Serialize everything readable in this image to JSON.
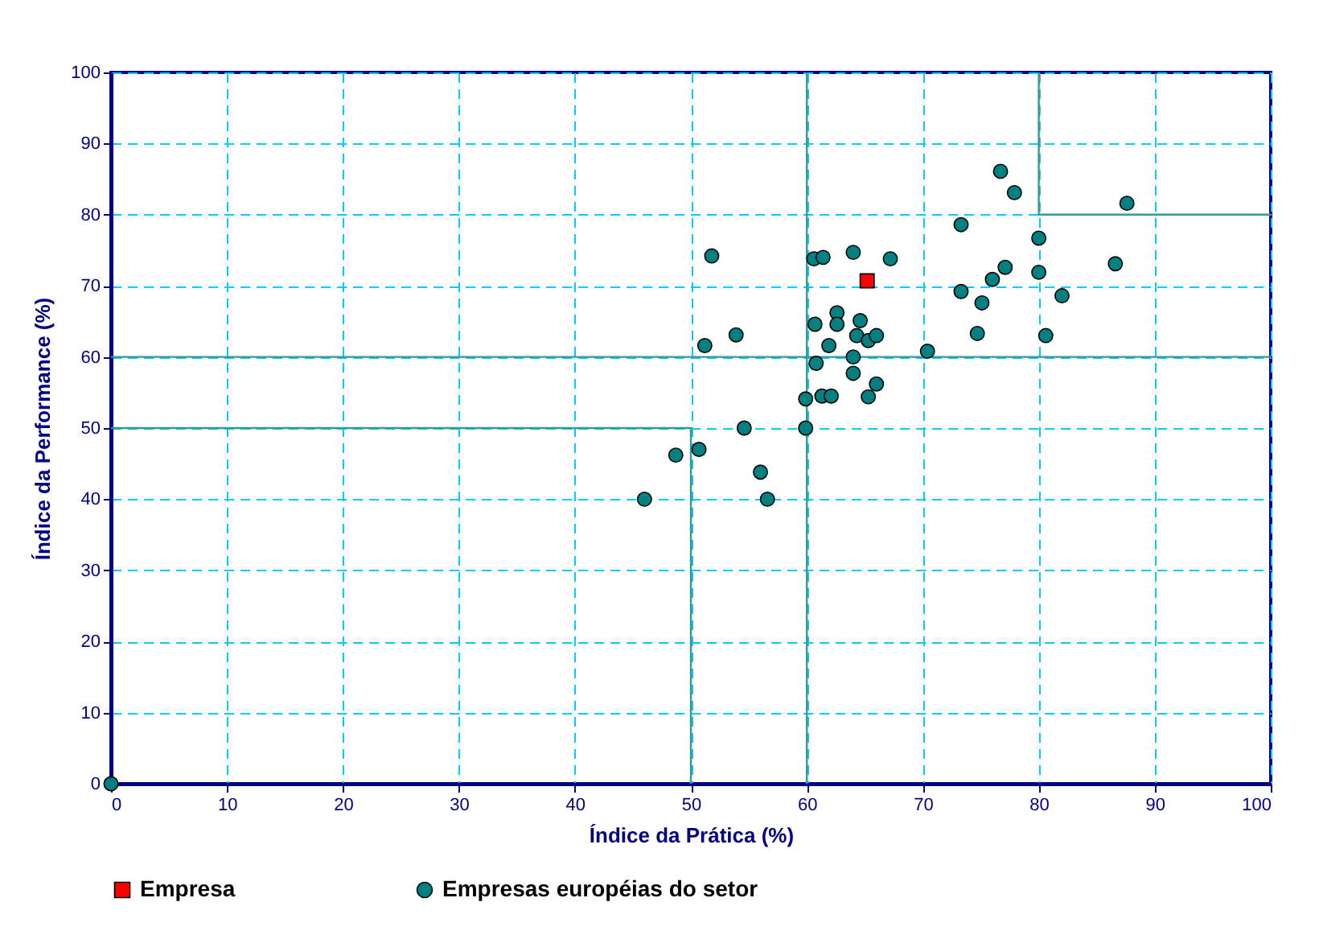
{
  "chart_data": {
    "type": "scatter",
    "xlabel": "Índice da Prática (%)",
    "ylabel": "Índice da Performance (%)",
    "xlim": [
      0,
      100
    ],
    "xticks": [
      0,
      10,
      20,
      30,
      40,
      50,
      60,
      70,
      80,
      90,
      100
    ],
    "ylim": [
      0,
      100
    ],
    "yticks": [
      0,
      10,
      20,
      30,
      40,
      50,
      60,
      70,
      80,
      90,
      100
    ],
    "grid": true,
    "legend": "bottom",
    "series": [
      {
        "name": "Empresa",
        "color": "#ff0000",
        "marker": "square",
        "x": [
          65.2
        ],
        "values": [
          70.7
        ]
      },
      {
        "name": "Empresas européias do setor",
        "color": "#008080",
        "marker": "circle",
        "x": [
          0,
          46.0,
          48.7,
          50.7,
          51.2,
          51.8,
          53.9,
          54.6,
          56.0,
          56.6,
          59.9,
          59.9,
          60.6,
          60.7,
          60.8,
          61.3,
          61.4,
          61.9,
          62.1,
          62.6,
          62.6,
          64.0,
          64.0,
          64.0,
          64.3,
          64.6,
          65.3,
          65.3,
          66.0,
          66.0,
          67.2,
          70.4,
          73.3,
          73.3,
          74.7,
          75.1,
          76.0,
          76.7,
          77.1,
          77.9,
          80.0,
          80.0,
          80.6,
          82.0,
          86.6,
          87.6
        ],
        "values": [
          0,
          40.0,
          46.2,
          47.0,
          61.6,
          74.2,
          63.1,
          50.0,
          43.8,
          40.0,
          54.1,
          50.0,
          73.8,
          64.6,
          59.1,
          54.5,
          74.0,
          61.6,
          54.5,
          66.2,
          64.6,
          74.7,
          60.0,
          57.7,
          63.0,
          65.1,
          62.3,
          54.4,
          63.0,
          56.2,
          73.8,
          60.8,
          78.6,
          69.2,
          63.3,
          67.6,
          70.9,
          86.1,
          72.6,
          83.1,
          76.7,
          71.9,
          63.0,
          68.6,
          73.1,
          81.6
        ]
      },
      {
        "type": "line",
        "color": "#339999",
        "marker": "none",
        "x": [
          0,
          50,
          50
        ],
        "values": [
          50,
          50,
          0
        ]
      },
      {
        "type": "line",
        "color": "#339999",
        "marker": "none",
        "x": [
          80,
          80,
          100
        ],
        "values": [
          100,
          80,
          80
        ]
      },
      {
        "type": "line",
        "color": "#339999",
        "marker": "none",
        "x": [
          60,
          60
        ],
        "values": [
          0,
          100
        ]
      },
      {
        "type": "line",
        "color": "#339999",
        "marker": "none",
        "x": [
          0,
          100
        ],
        "values": [
          60,
          60
        ]
      }
    ]
  }
}
